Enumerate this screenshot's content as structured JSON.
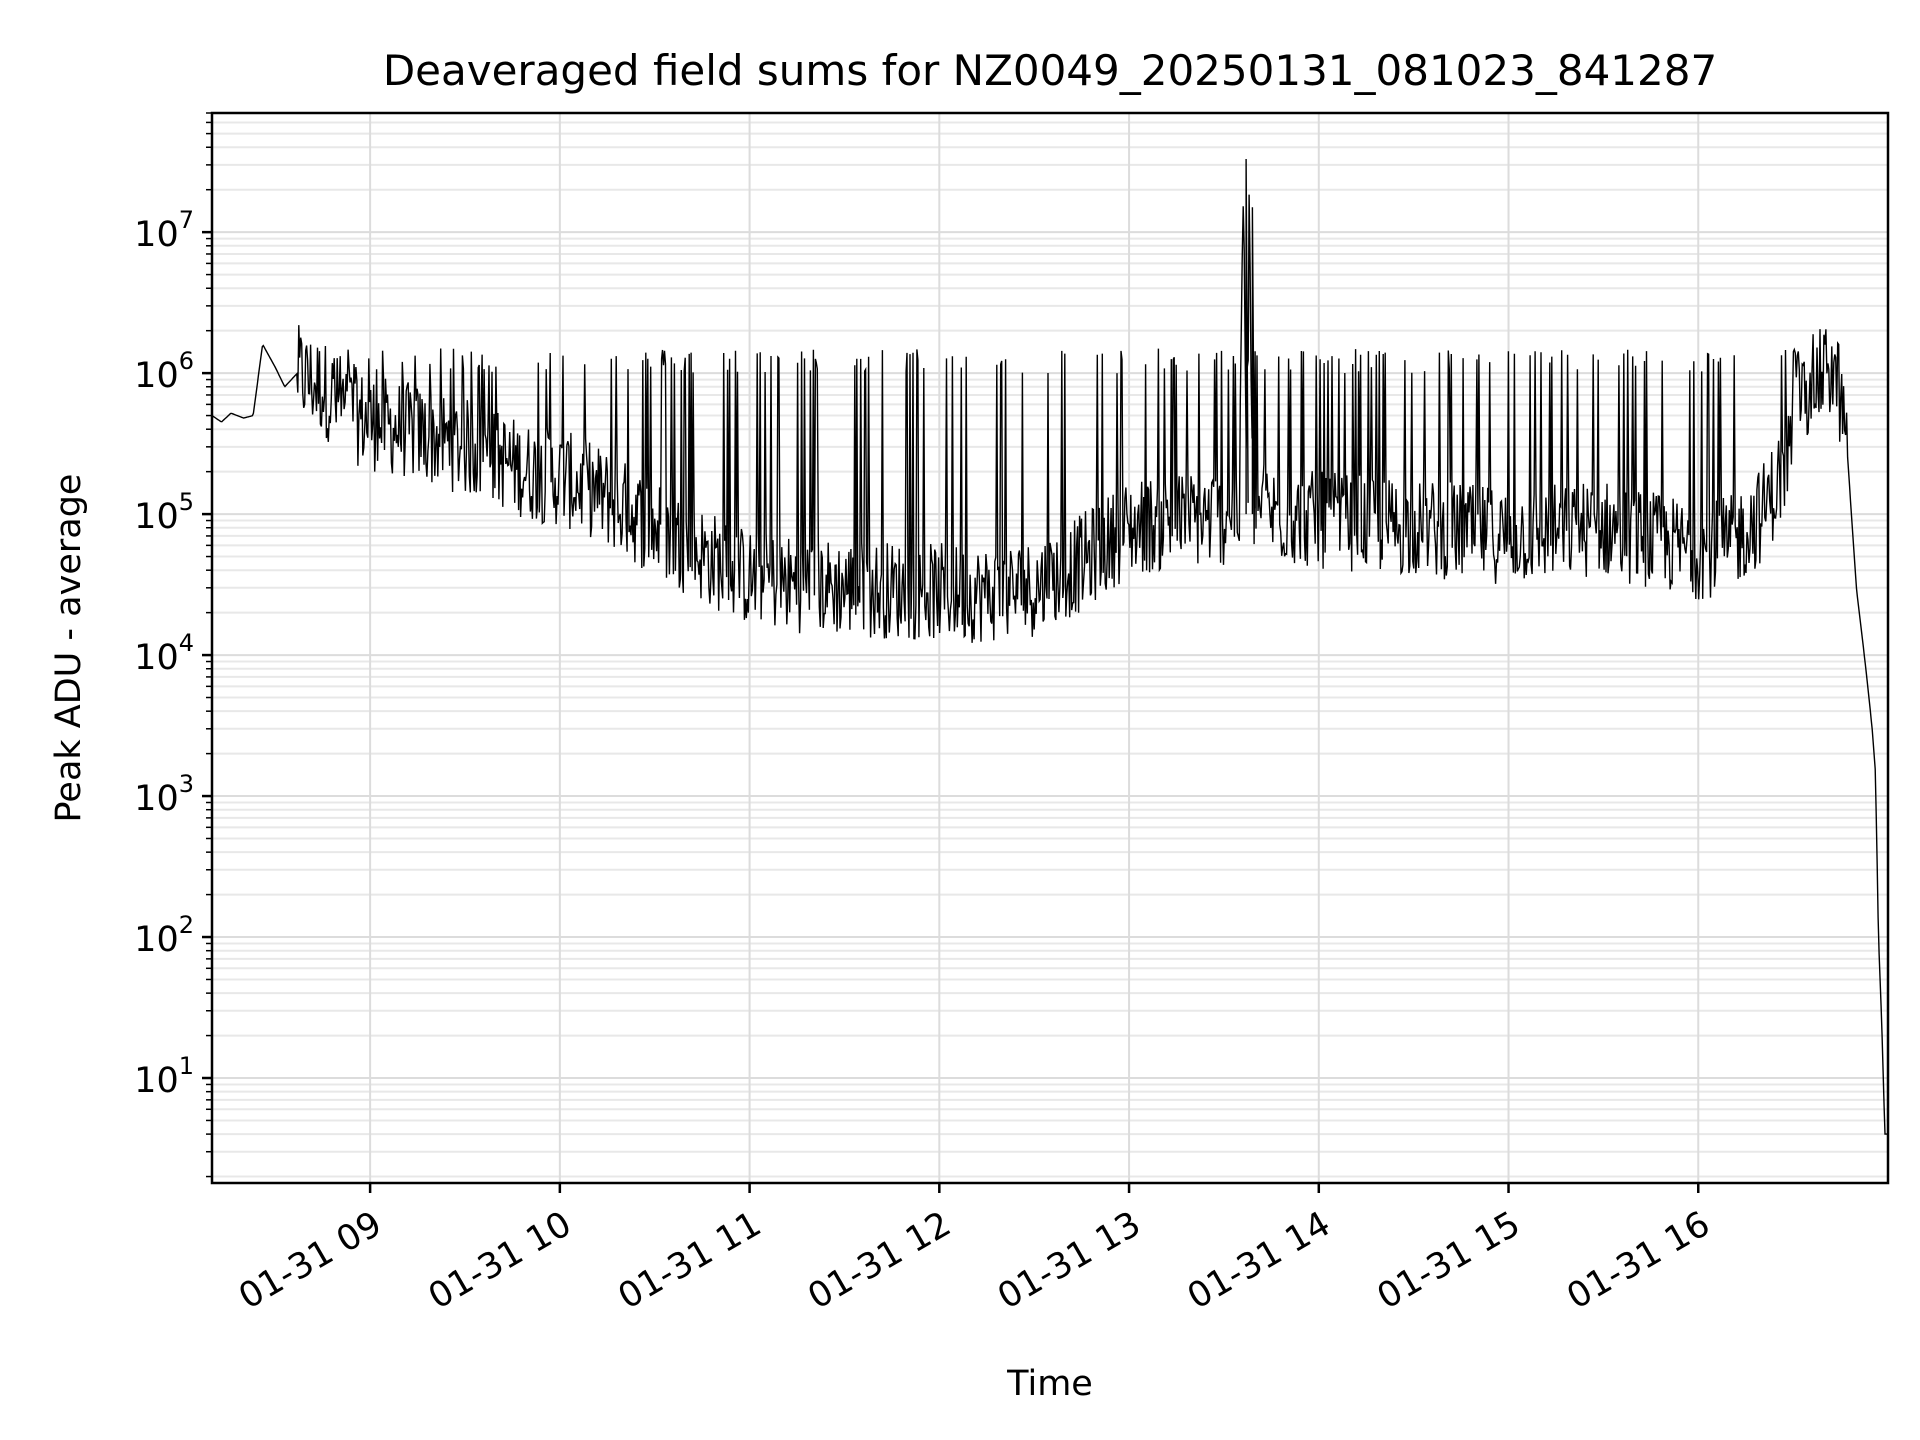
{
  "chart_data": {
    "type": "line",
    "title": "Deaveraged field sums for NZ0049_20250131_081023_841287",
    "xlabel": "Time",
    "ylabel": "Peak ADU - average",
    "yscale": "log",
    "grid": "major and minor",
    "line_color": "#000000",
    "xlim": [
      "2025-01-31 08:10",
      "2025-01-31 17:00"
    ],
    "ylim": [
      1.8,
      70000000
    ],
    "x_ticks": [
      "01-31 09",
      "01-31 10",
      "01-31 11",
      "01-31 12",
      "01-31 13",
      "01-31 14",
      "01-31 15",
      "01-31 16"
    ],
    "y_ticks": [
      {
        "base": "10",
        "exp": "1",
        "value": 10
      },
      {
        "base": "10",
        "exp": "2",
        "value": 100
      },
      {
        "base": "10",
        "exp": "3",
        "value": 1000
      },
      {
        "base": "10",
        "exp": "4",
        "value": 10000
      },
      {
        "base": "10",
        "exp": "5",
        "value": 100000
      },
      {
        "base": "10",
        "exp": "6",
        "value": 1000000
      },
      {
        "base": "10",
        "exp": "7",
        "value": 10000000
      }
    ],
    "series": [
      {
        "x": [
          "2025-01-31 08:10",
          "2025-01-31 08:13",
          "2025-01-31 08:16",
          "2025-01-31 08:20",
          "2025-01-31 08:23",
          "2025-01-31 08:26",
          "2025-01-31 08:30",
          "2025-01-31 08:33",
          "2025-01-31 08:37",
          "2025-01-31 08:40",
          "2025-01-31 08:45",
          "2025-01-31 08:50",
          "2025-01-31 08:55",
          "2025-01-31 09:00",
          "2025-01-31 09:10",
          "2025-01-31 09:20",
          "2025-01-31 09:30",
          "2025-01-31 09:40",
          "2025-01-31 09:50",
          "2025-01-31 10:00",
          "2025-01-31 10:10",
          "2025-01-31 10:20",
          "2025-01-31 10:30",
          "2025-01-31 10:40",
          "2025-01-31 10:50",
          "2025-01-31 11:00",
          "2025-01-31 11:15",
          "2025-01-31 11:30",
          "2025-01-31 11:45",
          "2025-01-31 12:00",
          "2025-01-31 12:15",
          "2025-01-31 12:30",
          "2025-01-31 12:45",
          "2025-01-31 13:00",
          "2025-01-31 13:15",
          "2025-01-31 13:30",
          "2025-01-31 13:35",
          "2025-01-31 13:36",
          "2025-01-31 13:37",
          "2025-01-31 13:38",
          "2025-01-31 13:39",
          "2025-01-31 13:45",
          "2025-01-31 14:00",
          "2025-01-31 14:15",
          "2025-01-31 14:30",
          "2025-01-31 14:45",
          "2025-01-31 15:00",
          "2025-01-31 15:15",
          "2025-01-31 15:30",
          "2025-01-31 15:45",
          "2025-01-31 16:00",
          "2025-01-31 16:10",
          "2025-01-31 16:20",
          "2025-01-31 16:27",
          "2025-01-31 16:30",
          "2025-01-31 16:35",
          "2025-01-31 16:40",
          "2025-01-31 16:44",
          "2025-01-31 16:47",
          "2025-01-31 16:50",
          "2025-01-31 16:53",
          "2025-01-31 16:55",
          "2025-01-31 16:56",
          "2025-01-31 16:57",
          "2025-01-31 16:58",
          "2025-01-31 16:59",
          "2025-01-31 17:00"
        ],
        "y": [
          500000,
          450000,
          520000,
          480000,
          500000,
          1600000,
          1100000,
          800000,
          1000000,
          900000,
          800000,
          600000,
          500000,
          450000,
          400000,
          350000,
          300000,
          250000,
          200000,
          180000,
          150000,
          110000,
          80000,
          60000,
          45000,
          35000,
          32000,
          30000,
          29000,
          28000,
          27000,
          30000,
          45000,
          80000,
          90000,
          95000,
          110000,
          30000000,
          200000,
          15000000,
          120000,
          100000,
          90000,
          85000,
          80000,
          75000,
          70000,
          75000,
          80000,
          65000,
          55000,
          60000,
          100000,
          200000,
          400000,
          800000,
          1000000,
          900000,
          300000,
          30000,
          8000,
          3000,
          1500,
          100,
          25,
          4,
          4
        ]
      }
    ]
  }
}
